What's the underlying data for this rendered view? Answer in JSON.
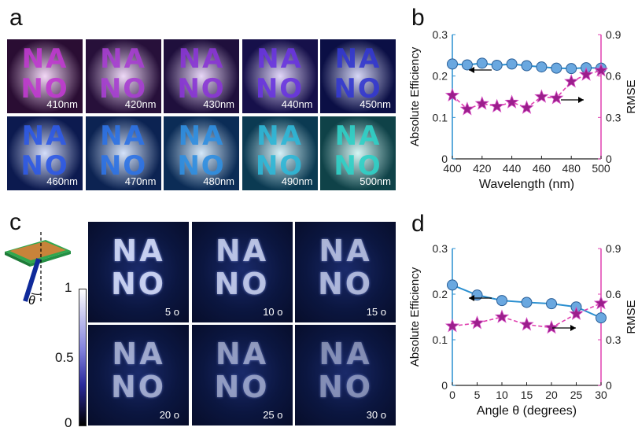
{
  "panel_letters": {
    "a": "a",
    "b": "b",
    "c": "c",
    "d": "d"
  },
  "nano_text": {
    "line1": "NA",
    "line2": "NO"
  },
  "panel_a": {
    "tiles": [
      {
        "label": "410nm",
        "bg": "#2a0d33",
        "glyph": "#c03ad0"
      },
      {
        "label": "420nm",
        "bg": "#27103a",
        "glyph": "#a83fd2"
      },
      {
        "label": "430nm",
        "bg": "#1f0f3c",
        "glyph": "#8a36d6"
      },
      {
        "label": "440nm",
        "bg": "#16104a",
        "glyph": "#6a35e0"
      },
      {
        "label": "450nm",
        "bg": "#0b0f45",
        "glyph": "#3338d0"
      },
      {
        "label": "460nm",
        "bg": "#0c1a4f",
        "glyph": "#2e5ae6"
      },
      {
        "label": "470nm",
        "bg": "#0c2352",
        "glyph": "#2d73e6"
      },
      {
        "label": "480nm",
        "bg": "#0b2c56",
        "glyph": "#2f8fe2"
      },
      {
        "label": "490nm",
        "bg": "#0b3a52",
        "glyph": "#2eb8d8"
      },
      {
        "label": "500nm",
        "bg": "#0f4248",
        "glyph": "#2fd2c8"
      }
    ]
  },
  "panel_c": {
    "tiles": [
      {
        "label": "5 o"
      },
      {
        "label": "10 o"
      },
      {
        "label": "15 o"
      },
      {
        "label": "20 o"
      },
      {
        "label": "25 o"
      },
      {
        "label": "30 o"
      }
    ],
    "colorbar": {
      "max": "1",
      "mid": "0.5",
      "min": "0"
    },
    "theta_symbol": "θ"
  },
  "chart_data": [
    {
      "type": "line",
      "panel": "b",
      "xlabel": "Wavelength (nm)",
      "ylabel": "Absolute Efficiency",
      "ylabel_right": "RMSE",
      "xlim": [
        400,
        500
      ],
      "ylim": [
        0,
        0.3
      ],
      "ylim_right": [
        0,
        0.9
      ],
      "xticks": [
        "400",
        "420",
        "440",
        "460",
        "480",
        "500"
      ],
      "yticks": [
        "0",
        "0.1",
        "0.2",
        "0.3"
      ],
      "yticks_right": [
        "0",
        "0.3",
        "0.6",
        "0.9"
      ],
      "series": [
        {
          "axis": "left",
          "color": "#1f77b4",
          "marker": "circle",
          "x": [
            400,
            410,
            420,
            430,
            440,
            450,
            460,
            470,
            480,
            490,
            500
          ],
          "values": [
            0.229,
            0.227,
            0.231,
            0.226,
            0.229,
            0.225,
            0.222,
            0.219,
            0.218,
            0.22,
            0.219
          ]
        },
        {
          "axis": "right",
          "color": "#e040b0",
          "marker": "star",
          "x": [
            400,
            410,
            420,
            430,
            440,
            450,
            460,
            470,
            480,
            490,
            500
          ],
          "values": [
            0.46,
            0.36,
            0.4,
            0.38,
            0.41,
            0.37,
            0.45,
            0.44,
            0.56,
            0.61,
            0.64
          ]
        }
      ]
    },
    {
      "type": "line",
      "panel": "d",
      "xlabel": "Angle θ (degrees)",
      "ylabel": "Absolute Efficiency",
      "ylabel_right": "RMSE",
      "xlim": [
        0,
        30
      ],
      "ylim": [
        0,
        0.3
      ],
      "ylim_right": [
        0,
        0.9
      ],
      "xticks": [
        "0",
        "5",
        "10",
        "15",
        "20",
        "25",
        "30"
      ],
      "yticks": [
        "0",
        "0.1",
        "0.2",
        "0.3"
      ],
      "yticks_right": [
        "0",
        "0.3",
        "0.6",
        "0.9"
      ],
      "series": [
        {
          "axis": "left",
          "color": "#1f77b4",
          "marker": "circle",
          "x": [
            0,
            5,
            10,
            15,
            20,
            25,
            30
          ],
          "values": [
            0.22,
            0.198,
            0.186,
            0.182,
            0.179,
            0.172,
            0.148
          ]
        },
        {
          "axis": "right",
          "color": "#e040b0",
          "marker": "star",
          "x": [
            0,
            5,
            10,
            15,
            20,
            25,
            30
          ],
          "values": [
            0.39,
            0.41,
            0.45,
            0.4,
            0.38,
            0.47,
            0.54
          ]
        }
      ]
    }
  ]
}
